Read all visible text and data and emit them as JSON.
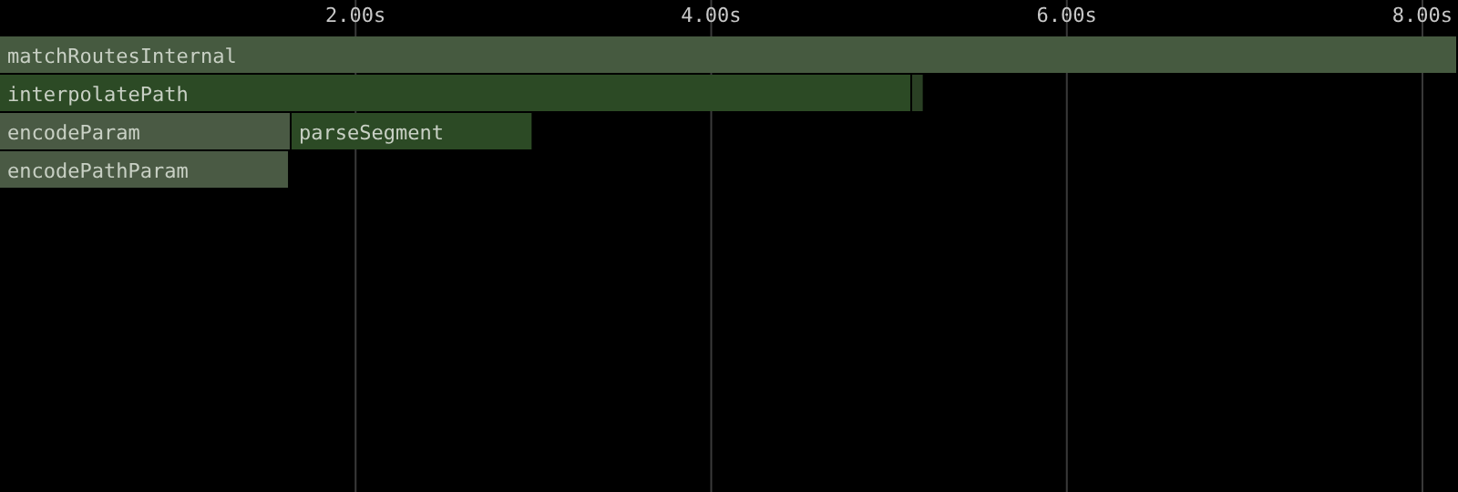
{
  "chart_data": {
    "type": "bar",
    "orientation": "horizontal",
    "stacked": true,
    "categories": [
      null,
      null,
      null,
      null
    ],
    "xlim": [
      0,
      8.2
    ],
    "xticks": [
      {
        "value": 2,
        "label": "2.00s"
      },
      {
        "value": 4,
        "label": "4.00s"
      },
      {
        "value": 6,
        "label": "6.00s"
      },
      {
        "value": 8,
        "label": "8.00s"
      }
    ],
    "grid": "x",
    "tick_labels": "x",
    "series": [
      {
        "name": "matchRoutesInternal",
        "color": "#465a40",
        "values": [
          8.2,
          null,
          null,
          null
        ]
      },
      {
        "name": "interpolatePath",
        "color": "#2c4a25",
        "values": [
          null,
          5.13,
          null,
          null
        ]
      },
      {
        "name": "encodeParam",
        "color": "#4a5a44",
        "values": [
          null,
          null,
          1.64,
          null
        ]
      },
      {
        "name": "encodePathParam",
        "color": "#4a5a44",
        "values": [
          null,
          null,
          null,
          1.63
        ]
      },
      {
        "name": "parseSegment",
        "color": "#2c4a25",
        "values": [
          null,
          null,
          1.36,
          null
        ]
      },
      {
        "color": "#2a4024",
        "values": [
          null,
          0.07,
          null,
          null
        ]
      }
    ]
  }
}
